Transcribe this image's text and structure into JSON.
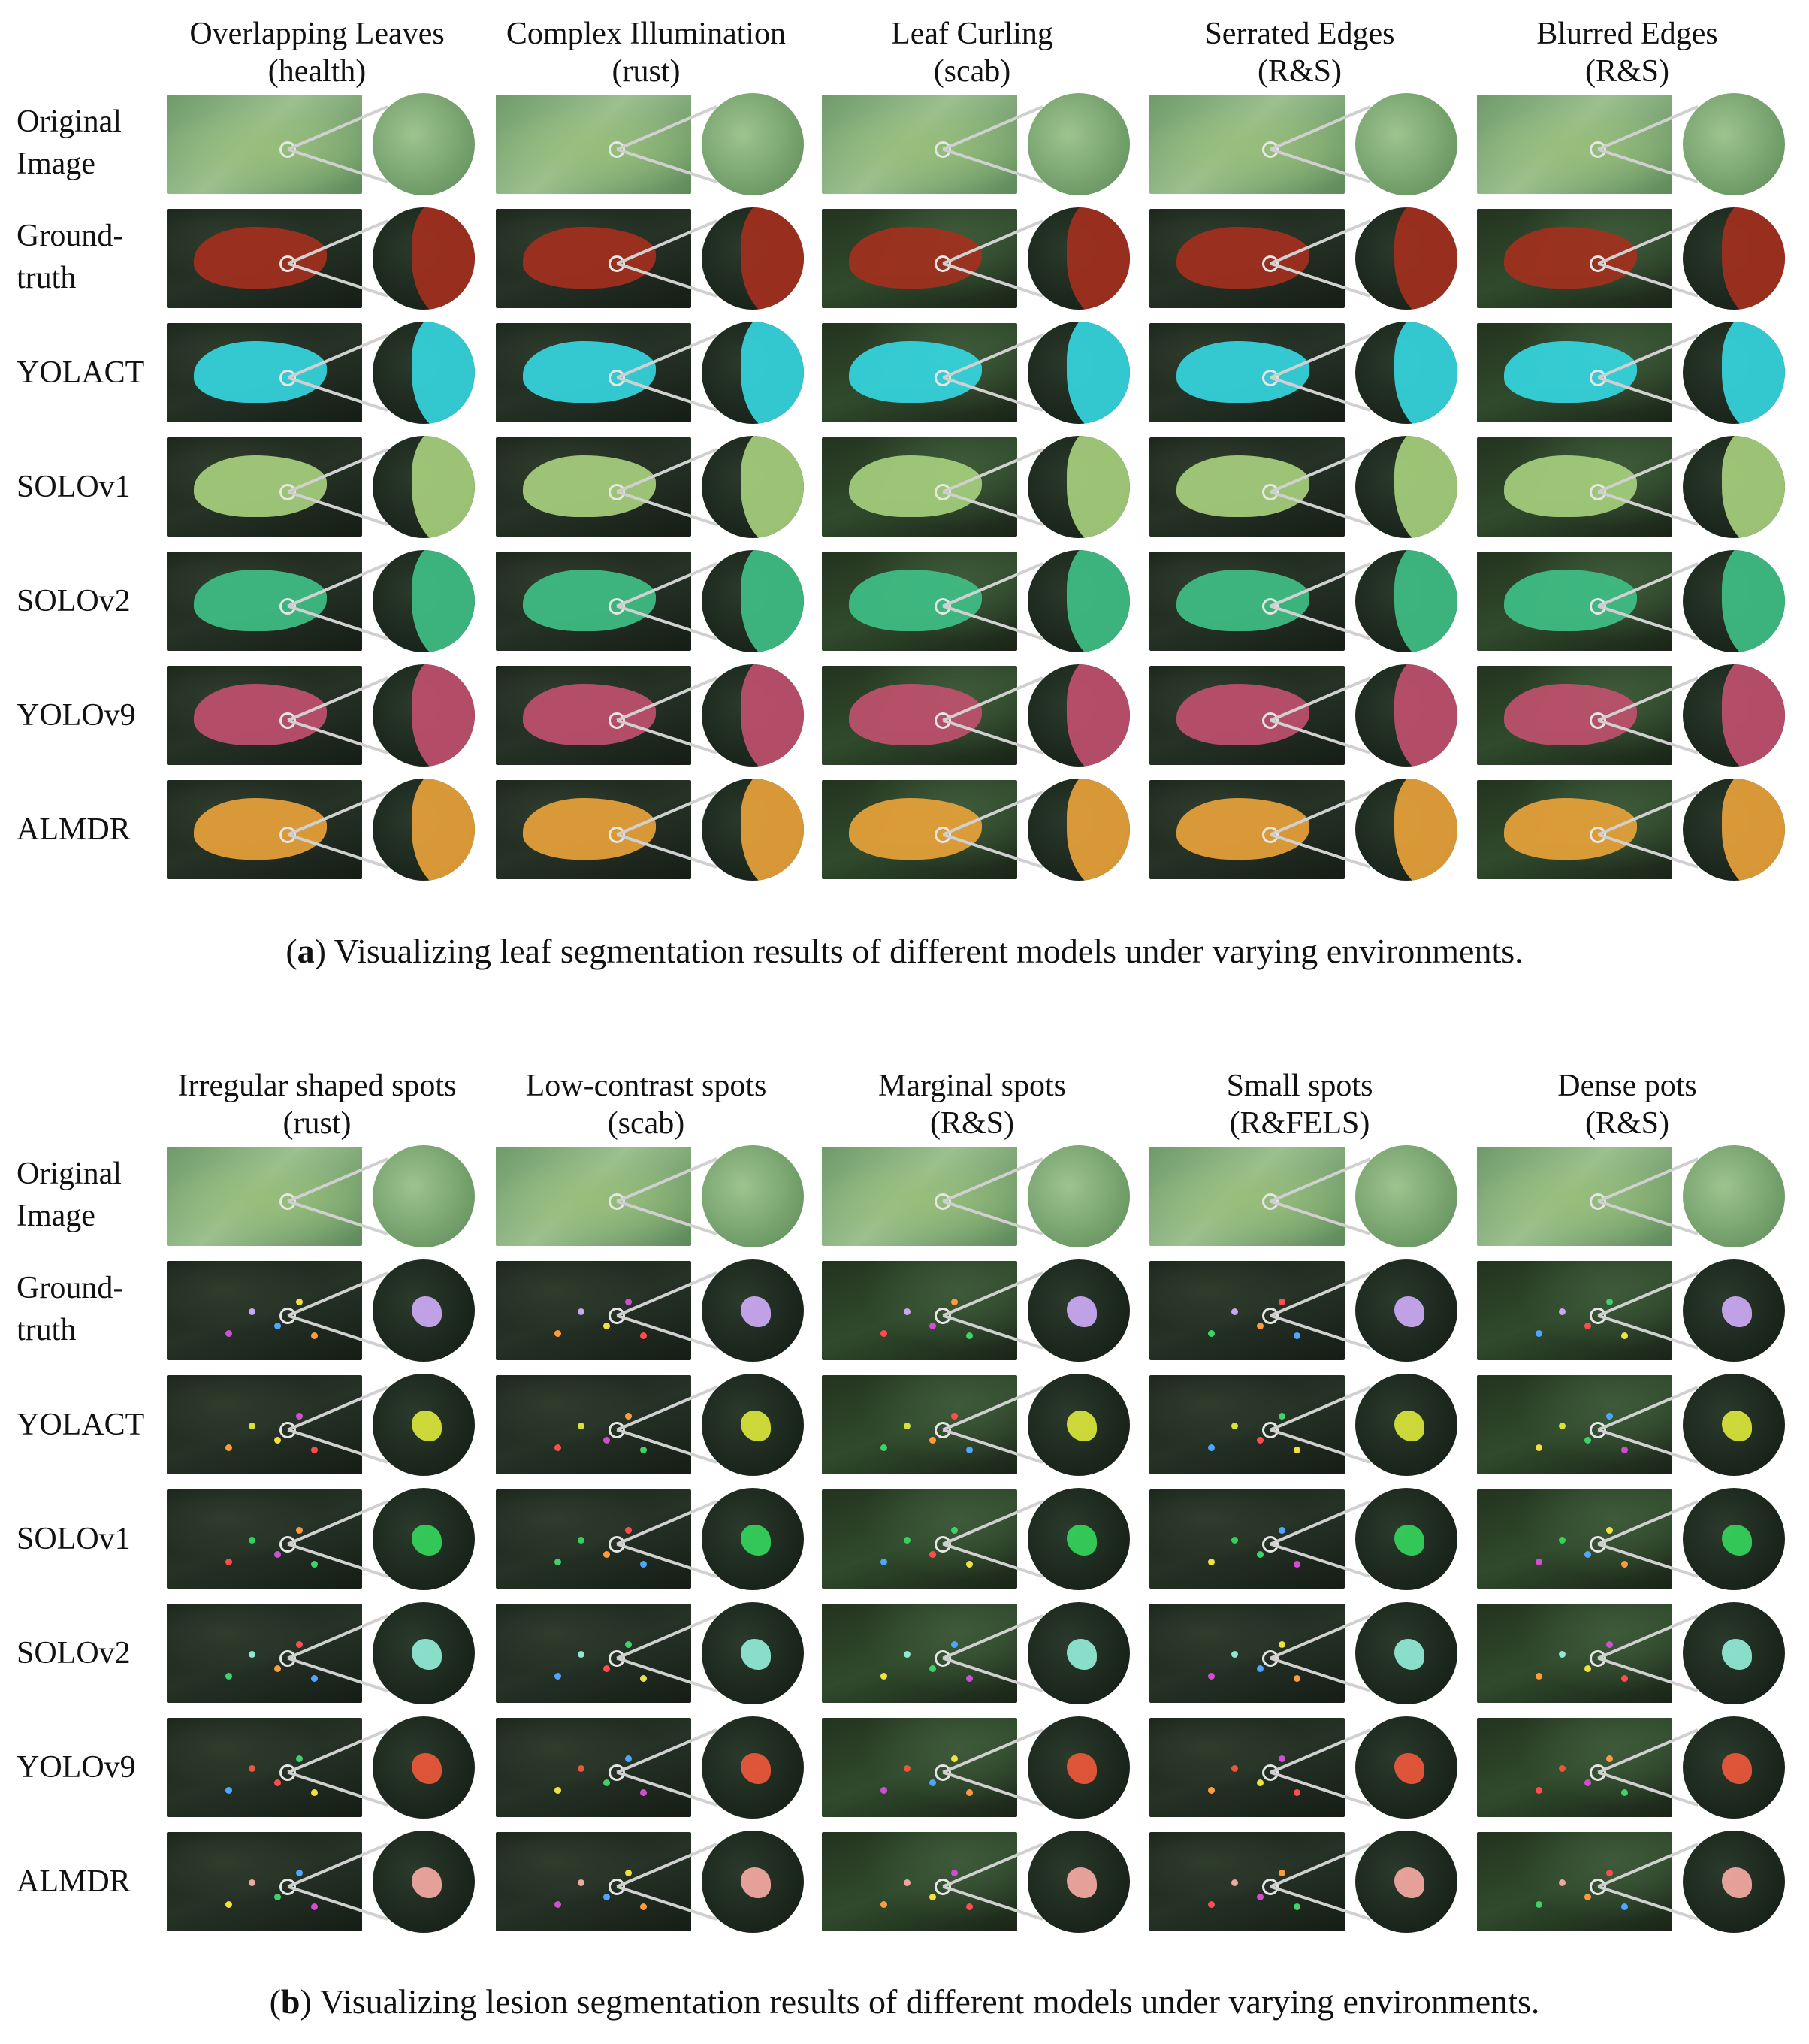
{
  "panel_a": {
    "columns": [
      {
        "title": "Overlapping Leaves",
        "subtitle": "(health)"
      },
      {
        "title": "Complex Illumination",
        "subtitle": "(rust)"
      },
      {
        "title": "Leaf Curling",
        "subtitle": "(scab)"
      },
      {
        "title": "Serrated Edges",
        "subtitle": "(R&S)"
      },
      {
        "title": "Blurred Edges",
        "subtitle": "(R&S)"
      }
    ],
    "rows": [
      {
        "label_line1": "Original",
        "label_line2": "Image",
        "color": ""
      },
      {
        "label_line1": "Ground-",
        "label_line2": "truth",
        "color": "#a3301e"
      },
      {
        "label_line1": "YOLACT",
        "label_line2": "",
        "color": "#35d6e0"
      },
      {
        "label_line1": "SOLOv1",
        "label_line2": "",
        "color": "#a6cf7d"
      },
      {
        "label_line1": "SOLOv2",
        "label_line2": "",
        "color": "#3fbf86"
      },
      {
        "label_line1": "YOLOv9",
        "label_line2": "",
        "color": "#c0506e"
      },
      {
        "label_line1": "ALMDR",
        "label_line2": "",
        "color": "#e8a23a"
      }
    ],
    "caption_label": "a",
    "caption_text": "Visualizing leaf segmentation results of different models under varying environments."
  },
  "panel_b": {
    "columns": [
      {
        "title": "Irregular shaped spots",
        "subtitle": "(rust)"
      },
      {
        "title": "Low-contrast spots",
        "subtitle": "(scab)"
      },
      {
        "title": "Marginal spots",
        "subtitle": "(R&S)"
      },
      {
        "title": "Small spots",
        "subtitle": "(R&FELS)"
      },
      {
        "title": "Dense pots",
        "subtitle": "(R&S)"
      }
    ],
    "rows": [
      {
        "label_line1": "Original",
        "label_line2": "Image",
        "color": ""
      },
      {
        "label_line1": "Ground-",
        "label_line2": "truth",
        "color": "#c9a8f0"
      },
      {
        "label_line1": "YOLACT",
        "label_line2": "",
        "color": "#d6e23a"
      },
      {
        "label_line1": "SOLOv1",
        "label_line2": "",
        "color": "#34d05a"
      },
      {
        "label_line1": "SOLOv2",
        "label_line2": "",
        "color": "#8fe8d2"
      },
      {
        "label_line1": "YOLOv9",
        "label_line2": "",
        "color": "#e8573a"
      },
      {
        "label_line1": "ALMDR",
        "label_line2": "",
        "color": "#f0a7a0"
      }
    ],
    "spot_colors": [
      "#ff4d4d",
      "#3fd16a",
      "#4da6ff",
      "#f0e040",
      "#d14dd1",
      "#ff9a3d"
    ],
    "caption_label": "b",
    "caption_text": "Visualizing lesion segmentation results of different models under varying environments."
  }
}
